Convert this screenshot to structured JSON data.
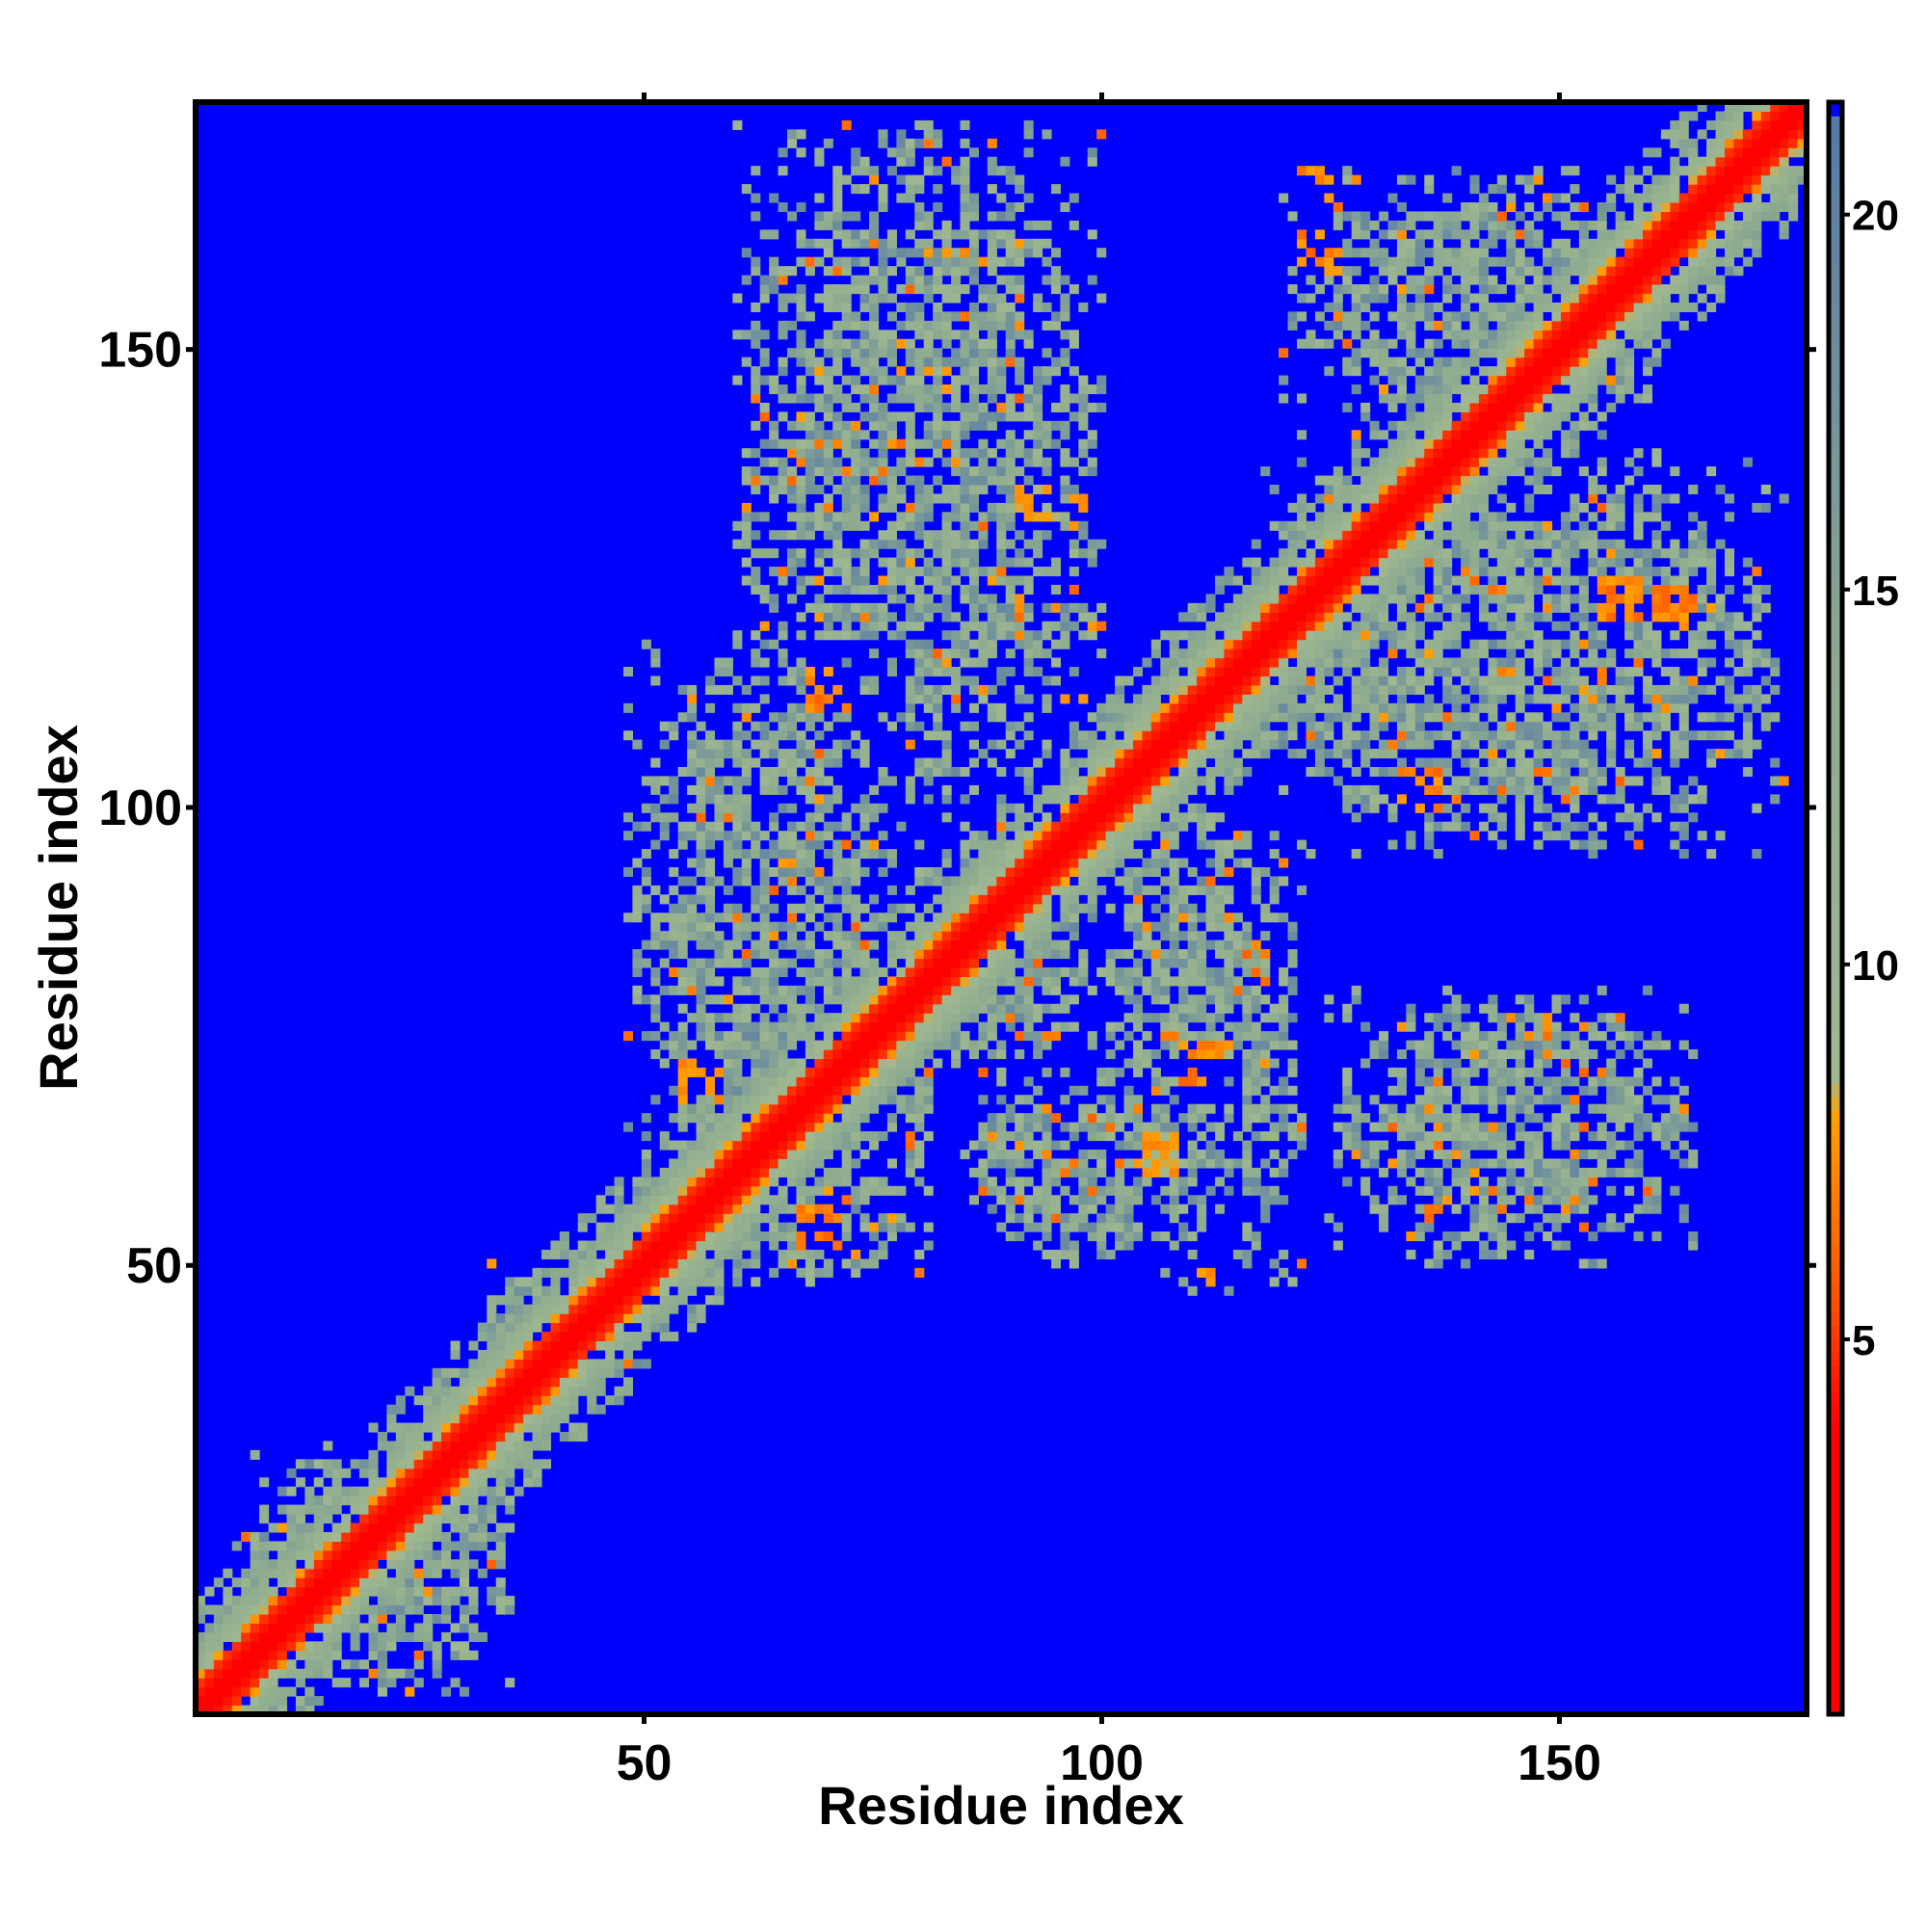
{
  "chart_data": {
    "type": "heatmap",
    "title": "",
    "xlabel": "Residue index",
    "ylabel": "Residue index",
    "n_residues": 177,
    "xlim": [
      1,
      177
    ],
    "ylim": [
      1,
      177
    ],
    "x_ticks": [
      50,
      100,
      150
    ],
    "y_ticks": [
      50,
      100,
      150
    ],
    "colorbar": {
      "range": [
        0,
        21.5
      ],
      "ticks": [
        5,
        10,
        15,
        20
      ],
      "cap_value": 21.5
    },
    "colors": {
      "background": "#0000ff",
      "stops": [
        {
          "v": 0,
          "c": "#ff0000"
        },
        {
          "v": 3.8,
          "c": "#ff0000"
        },
        {
          "v": 5.5,
          "c": "#ff5000"
        },
        {
          "v": 8.0,
          "c": "#ffa000"
        },
        {
          "v": 8.5,
          "c": "#a0b890"
        },
        {
          "v": 14.0,
          "c": "#8caa90"
        },
        {
          "v": 21.5,
          "c": "#5577a8"
        }
      ]
    },
    "diagonal": {
      "near_width": 3,
      "band_width": 8
    },
    "contact_regions": [
      {
        "x": [
          48,
          78
        ],
        "y": [
          60,
          118
        ]
      },
      {
        "x": [
          58,
          82
        ],
        "y": [
          48,
          90
        ]
      },
      {
        "x": [
          60,
          100
        ],
        "y": [
          100,
          175
        ]
      },
      {
        "x": [
          85,
          115
        ],
        "y": [
          50,
          72
        ]
      },
      {
        "x": [
          100,
          122
        ],
        "y": [
          47,
          100
        ]
      },
      {
        "x": [
          118,
          175
        ],
        "y": [
          95,
          138
        ]
      },
      {
        "x": [
          148,
          170
        ],
        "y": [
          108,
          140
        ]
      },
      {
        "x": [
          120,
          160
        ],
        "y": [
          140,
          170
        ]
      },
      {
        "x": [
          125,
          165
        ],
        "y": [
          50,
          80
        ]
      },
      {
        "x": [
          80,
          100
        ],
        "y": [
          72,
          100
        ]
      },
      {
        "x": [
          5,
          35
        ],
        "y": [
          3,
          30
        ]
      },
      {
        "x": [
          32,
          50
        ],
        "y": [
          38,
          50
        ]
      }
    ],
    "hotspots": [
      {
        "x": 70,
        "y": 113,
        "v": 6
      },
      {
        "x": 56,
        "y": 70,
        "v": 6
      },
      {
        "x": 69,
        "y": 54,
        "v": 6
      },
      {
        "x": 80,
        "y": 78,
        "v": 7
      },
      {
        "x": 93,
        "y": 133,
        "v": 7
      },
      {
        "x": 111,
        "y": 72,
        "v": 6
      },
      {
        "x": 124,
        "y": 168,
        "v": 6
      },
      {
        "x": 124,
        "y": 161,
        "v": 6
      },
      {
        "x": 135,
        "y": 102,
        "v": 6
      },
      {
        "x": 157,
        "y": 123,
        "v": 6
      },
      {
        "x": 163,
        "y": 122,
        "v": 6
      },
      {
        "x": 107,
        "y": 62,
        "v": 7
      }
    ]
  }
}
